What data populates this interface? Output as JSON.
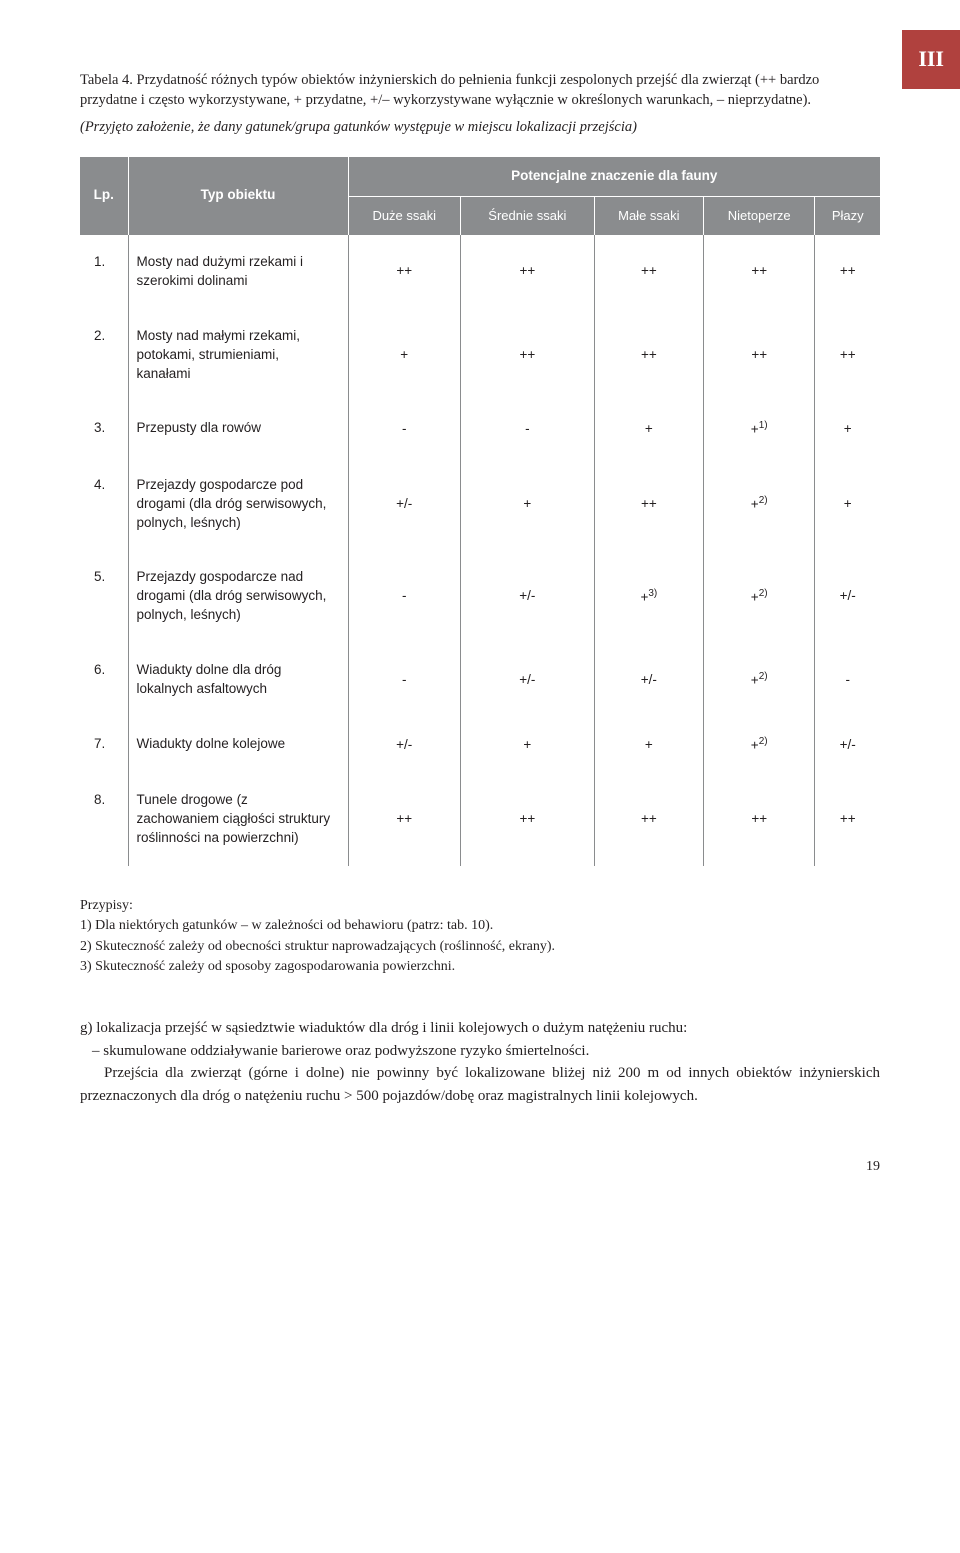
{
  "section_badge": "III",
  "caption": "Tabela 4. Przydatność różnych typów obiektów inżynierskich do pełnienia funkcji zespolonych przejść dla zwierząt (++ bardzo przydatne i często wykorzystywane, + przydatne, +/– wykorzystywane wyłącznie w określonych warunkach, – nieprzydatne).",
  "caption_note": "(Przyjęto założenie, że dany gatunek/grupa gatunków występuje w miejscu lokalizacji przejścia)",
  "table": {
    "header_lp": "Lp.",
    "header_typ": "Typ obiektu",
    "header_group": "Potencjalne znaczenie dla fauny",
    "cols": [
      "Duże ssaki",
      "Średnie ssaki",
      "Małe ssaki",
      "Nietoperze",
      "Płazy"
    ],
    "rows": [
      {
        "n": "1.",
        "desc": "Mosty nad dużymi rzekami i szerokimi dolinami",
        "v": [
          "++",
          "++",
          "++",
          "++",
          "++"
        ],
        "sup": [
          "",
          "",
          "",
          "",
          ""
        ]
      },
      {
        "n": "2.",
        "desc": "Mosty nad małymi rzekami, potokami, strumieniami, kanałami",
        "v": [
          "+",
          "++",
          "++",
          "++",
          "++"
        ],
        "sup": [
          "",
          "",
          "",
          "",
          ""
        ]
      },
      {
        "n": "3.",
        "desc": "Przepusty dla rowów",
        "v": [
          "-",
          "-",
          "+",
          "+",
          "+"
        ],
        "sup": [
          "",
          "",
          "",
          "1)",
          ""
        ]
      },
      {
        "n": "4.",
        "desc": "Przejazdy gospodarcze pod drogami (dla dróg serwisowych, polnych, leśnych)",
        "v": [
          "+/-",
          "+",
          "++",
          "+",
          "+"
        ],
        "sup": [
          "",
          "",
          "",
          "2)",
          ""
        ]
      },
      {
        "n": "5.",
        "desc": "Przejazdy gospodarcze nad drogami (dla dróg serwisowych, polnych, leśnych)",
        "v": [
          "-",
          "+/-",
          "+",
          "+",
          "+/-"
        ],
        "sup": [
          "",
          "",
          "3)",
          "2)",
          ""
        ]
      },
      {
        "n": "6.",
        "desc": "Wiadukty dolne dla dróg lokalnych asfaltowych",
        "v": [
          "-",
          "+/-",
          "+/-",
          "+",
          "-"
        ],
        "sup": [
          "",
          "",
          "",
          "2)",
          ""
        ]
      },
      {
        "n": "7.",
        "desc": "Wiadukty dolne kolejowe",
        "v": [
          "+/-",
          "+",
          "+",
          "+",
          "+/-"
        ],
        "sup": [
          "",
          "",
          "",
          "2)",
          ""
        ]
      },
      {
        "n": "8.",
        "desc": "Tunele drogowe (z zachowaniem ciągłości struktury roślinności na powierzchni)",
        "v": [
          "++",
          "++",
          "++",
          "++",
          "++"
        ],
        "sup": [
          "",
          "",
          "",
          "",
          ""
        ]
      }
    ]
  },
  "footnotes_title": "Przypisy:",
  "footnotes": [
    "1) Dla niektórych gatunków – w zależności od behawioru (patrz: tab. 10).",
    "2) Skuteczność zależy od obecności struktur naprowadzających (roślinność, ekrany).",
    "3) Skuteczność zależy od sposoby zagospodarowania powierzchni."
  ],
  "body": {
    "p1": "g) lokalizacja przejść w sąsiedztwie wiaduktów dla dróg i linii kolejowych o dużym natężeniu ruchu:",
    "p2": "– skumulowane oddziaływanie barierowe oraz podwyższone ryzyko śmiertelności.",
    "p3": "Przejścia dla zwierząt (górne i dolne) nie powinny być lokalizowane bliżej niż 200 m od innych obiektów inżynierskich przeznaczonych dla dróg o natężeniu ruchu > 500 pojazdów/dobę oraz magistralnych linii kolejowych."
  },
  "page_number": "19"
}
